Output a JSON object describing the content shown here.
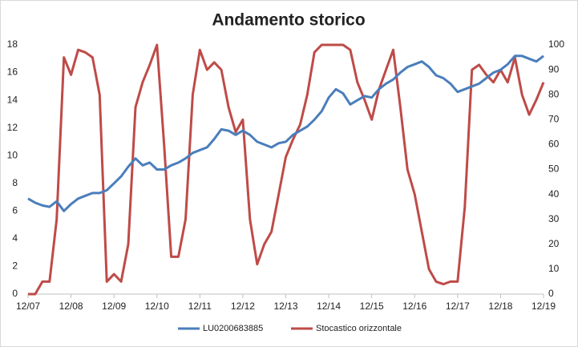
{
  "chart_data": {
    "type": "line",
    "title": "Andamento storico",
    "categories": [
      "12/07",
      null,
      null,
      null,
      null,
      null,
      "12/08",
      null,
      null,
      null,
      null,
      null,
      "12/09",
      null,
      null,
      null,
      null,
      null,
      "12/10",
      null,
      null,
      null,
      null,
      null,
      "12/11",
      null,
      null,
      null,
      null,
      null,
      "12/12",
      null,
      null,
      null,
      null,
      null,
      "12/13",
      null,
      null,
      null,
      null,
      null,
      "12/14",
      null,
      null,
      null,
      null,
      null,
      "12/15",
      null,
      null,
      null,
      null,
      null,
      "12/16",
      null,
      null,
      null,
      null,
      null,
      "12/17",
      null,
      null,
      null,
      null,
      null,
      "12/18",
      null,
      null,
      null,
      null,
      null,
      "12/19"
    ],
    "series": [
      {
        "name": "LU0200683885",
        "color": "#4a7ebb",
        "axis": "y",
        "values": [
          6.9,
          6.6,
          6.4,
          6.3,
          6.7,
          6.0,
          6.5,
          6.9,
          7.1,
          7.3,
          7.3,
          7.5,
          8.0,
          8.5,
          9.2,
          9.8,
          9.3,
          9.5,
          9.0,
          9.0,
          9.3,
          9.5,
          9.8,
          10.2,
          10.4,
          10.6,
          11.2,
          11.9,
          11.8,
          11.5,
          11.8,
          11.5,
          11.0,
          10.8,
          10.6,
          10.9,
          11.0,
          11.5,
          11.8,
          12.1,
          12.6,
          13.2,
          14.2,
          14.8,
          14.5,
          13.7,
          14.0,
          14.3,
          14.2,
          14.8,
          15.2,
          15.5,
          16.0,
          16.4,
          16.6,
          16.8,
          16.4,
          15.8,
          15.6,
          15.2,
          14.6,
          14.8,
          15.0,
          15.2,
          15.6,
          16.0,
          16.2,
          16.6,
          17.2,
          17.2,
          17.0,
          16.8,
          17.2
        ]
      },
      {
        "name": "Stocastico orizzontale",
        "color": "#be4b48",
        "axis": "y2",
        "values": [
          0,
          0,
          5,
          5,
          30,
          95,
          88,
          98,
          97,
          95,
          80,
          5,
          8,
          5,
          20,
          75,
          85,
          92,
          100,
          60,
          15,
          15,
          30,
          80,
          98,
          90,
          93,
          90,
          75,
          65,
          70,
          30,
          12,
          20,
          25,
          40,
          55,
          62,
          68,
          80,
          97,
          100,
          100,
          100,
          100,
          98,
          85,
          78,
          70,
          82,
          90,
          98,
          75,
          50,
          40,
          25,
          10,
          5,
          4,
          5,
          5,
          35,
          90,
          92,
          88,
          85,
          90,
          85,
          95,
          80,
          72,
          78,
          85
        ]
      }
    ],
    "ylim": [
      0,
      18
    ],
    "yticks": [
      0,
      2,
      4,
      6,
      8,
      10,
      12,
      14,
      16,
      18
    ],
    "y2lim": [
      0,
      100
    ],
    "y2ticks": [
      0,
      10,
      20,
      30,
      40,
      50,
      60,
      70,
      80,
      90,
      100
    ],
    "grid": false,
    "legend": "bottom"
  }
}
